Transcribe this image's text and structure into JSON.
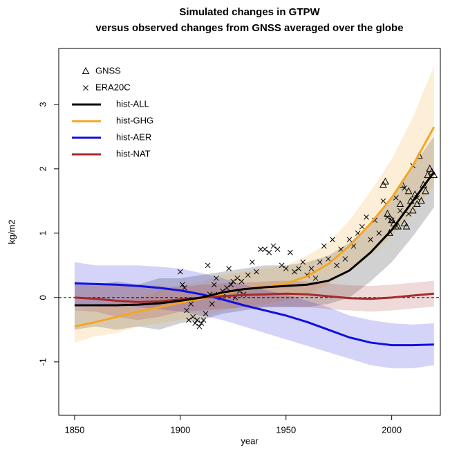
{
  "chart_data": {
    "type": "line",
    "title": [
      "Simulated changes in GTPW",
      "versus observed changes from GNSS averaged over the globe"
    ],
    "x_label": "year",
    "y_label": "kg/m2",
    "xlim": [
      1842.5,
      2023
    ],
    "ylim": [
      -1.83,
      3.87
    ],
    "xticks": [
      1850,
      1900,
      1950,
      2000
    ],
    "yticks": [
      -1,
      0,
      1,
      2,
      3
    ],
    "reference_line": 0,
    "legend": "topleft",
    "x": [
      1850,
      1860,
      1870,
      1880,
      1890,
      1900,
      1910,
      1920,
      1930,
      1940,
      1950,
      1960,
      1970,
      1980,
      1990,
      2000,
      2010,
      2020
    ],
    "series": [
      {
        "name": "hist-ALL",
        "color": "#000000",
        "values": [
          -0.12,
          -0.12,
          -0.12,
          -0.11,
          -0.09,
          -0.05,
          0.0,
          0.08,
          0.13,
          0.16,
          0.18,
          0.2,
          0.26,
          0.42,
          0.7,
          1.05,
          1.5,
          1.95
        ],
        "lower": [
          -0.5,
          -0.45,
          -0.5,
          -0.45,
          -0.5,
          -0.4,
          -0.35,
          -0.25,
          -0.2,
          -0.15,
          -0.15,
          -0.15,
          -0.1,
          0.0,
          0.25,
          0.55,
          0.95,
          1.4
        ],
        "upper": [
          0.25,
          0.2,
          0.25,
          0.2,
          0.3,
          0.3,
          0.35,
          0.4,
          0.45,
          0.5,
          0.5,
          0.55,
          0.65,
          0.85,
          1.15,
          1.55,
          2.05,
          2.5
        ]
      },
      {
        "name": "hist-GHG",
        "color": "#f5a623",
        "values": [
          -0.45,
          -0.38,
          -0.3,
          -0.22,
          -0.15,
          -0.08,
          -0.02,
          0.06,
          0.13,
          0.17,
          0.22,
          0.33,
          0.52,
          0.8,
          1.15,
          1.55,
          2.05,
          2.65
        ],
        "lower": [
          -0.7,
          -0.6,
          -0.55,
          -0.45,
          -0.4,
          -0.35,
          -0.3,
          -0.2,
          -0.15,
          -0.1,
          -0.05,
          0.05,
          0.2,
          0.4,
          0.65,
          0.95,
          1.3,
          1.75
        ],
        "upper": [
          -0.2,
          -0.15,
          -0.05,
          0.0,
          0.1,
          0.2,
          0.25,
          0.35,
          0.4,
          0.45,
          0.5,
          0.65,
          0.85,
          1.2,
          1.65,
          2.15,
          2.8,
          3.6
        ]
      },
      {
        "name": "hist-AER",
        "color": "#1010e0",
        "values": [
          0.22,
          0.21,
          0.2,
          0.18,
          0.15,
          0.11,
          0.05,
          -0.03,
          -0.12,
          -0.2,
          -0.28,
          -0.38,
          -0.5,
          -0.62,
          -0.7,
          -0.74,
          -0.74,
          -0.73
        ],
        "lower": [
          -0.1,
          -0.1,
          -0.12,
          -0.15,
          -0.18,
          -0.22,
          -0.28,
          -0.35,
          -0.45,
          -0.55,
          -0.65,
          -0.75,
          -0.85,
          -0.95,
          -1.05,
          -1.1,
          -1.1,
          -1.05
        ],
        "upper": [
          0.55,
          0.5,
          0.5,
          0.5,
          0.48,
          0.45,
          0.38,
          0.3,
          0.2,
          0.12,
          0.05,
          -0.05,
          -0.15,
          -0.28,
          -0.35,
          -0.4,
          -0.42,
          -0.4
        ]
      },
      {
        "name": "hist-NAT",
        "color": "#a52a2a",
        "values": [
          0.0,
          -0.02,
          -0.05,
          -0.07,
          -0.06,
          -0.03,
          0.0,
          0.02,
          0.04,
          0.05,
          0.06,
          0.05,
          0.02,
          -0.01,
          -0.02,
          0.0,
          0.03,
          0.06
        ],
        "lower": [
          -0.2,
          -0.22,
          -0.3,
          -0.35,
          -0.3,
          -0.22,
          -0.2,
          -0.18,
          -0.15,
          -0.15,
          -0.14,
          -0.15,
          -0.18,
          -0.2,
          -0.22,
          -0.2,
          -0.17,
          -0.14
        ],
        "upper": [
          0.2,
          0.18,
          0.2,
          0.2,
          0.18,
          0.16,
          0.2,
          0.22,
          0.23,
          0.25,
          0.26,
          0.25,
          0.22,
          0.19,
          0.18,
          0.2,
          0.23,
          0.26
        ]
      }
    ],
    "points": [
      {
        "name": "GNSS",
        "marker": "triangle",
        "x": [
          1996,
          1997,
          1998,
          1999,
          2000,
          2001,
          2002,
          2003,
          2004,
          2005,
          2006,
          2007,
          2008,
          2009,
          2010,
          2011,
          2012,
          2013,
          2014,
          2015,
          2016,
          2017,
          2018,
          2019,
          2020
        ],
        "values": [
          1.75,
          1.8,
          1.3,
          1.0,
          1.2,
          1.15,
          1.1,
          1.1,
          1.45,
          1.75,
          1.15,
          1.1,
          1.65,
          1.5,
          1.35,
          1.6,
          1.45,
          2.2,
          1.5,
          1.75,
          1.65,
          1.9,
          2.0,
          1.95,
          1.9
        ]
      },
      {
        "name": "ERA20C",
        "marker": "cross",
        "x": [
          1900,
          1901,
          1902,
          1903,
          1904,
          1905,
          1906,
          1907,
          1908,
          1909,
          1910,
          1911,
          1912,
          1913,
          1914,
          1915,
          1916,
          1917,
          1918,
          1919,
          1920,
          1921,
          1922,
          1923,
          1924,
          1925,
          1926,
          1927,
          1928,
          1929,
          1930,
          1932,
          1934,
          1936,
          1938,
          1940,
          1942,
          1944,
          1946,
          1948,
          1950,
          1952,
          1954,
          1956,
          1958,
          1960,
          1962,
          1964,
          1966,
          1968,
          1970,
          1972,
          1974,
          1976,
          1978,
          1980,
          1982,
          1984,
          1986,
          1988,
          1990,
          1992,
          1994,
          1996,
          1998,
          2000,
          2002,
          2004,
          2006,
          2008,
          2010,
          2012
        ],
        "values": [
          0.4,
          0.2,
          0.15,
          -0.2,
          -0.35,
          -0.1,
          -0.3,
          -0.4,
          -0.35,
          -0.45,
          -0.4,
          -0.35,
          -0.25,
          0.5,
          0.05,
          -0.1,
          0.2,
          0.3,
          0.05,
          0.0,
          0.1,
          0.05,
          0.15,
          0.45,
          0.2,
          0.25,
          0.0,
          0.3,
          0.1,
          0.25,
          0.05,
          0.35,
          0.55,
          0.4,
          0.75,
          0.75,
          0.7,
          0.8,
          0.75,
          0.5,
          0.45,
          0.7,
          0.4,
          0.45,
          0.55,
          0.35,
          0.45,
          0.3,
          0.55,
          0.8,
          0.6,
          0.9,
          0.5,
          0.75,
          0.6,
          0.9,
          0.8,
          1.0,
          1.1,
          1.25,
          0.9,
          1.2,
          1.0,
          1.5,
          1.25,
          1.2,
          1.55,
          1.35,
          1.7,
          1.3,
          2.05,
          1.55
        ]
      }
    ]
  }
}
